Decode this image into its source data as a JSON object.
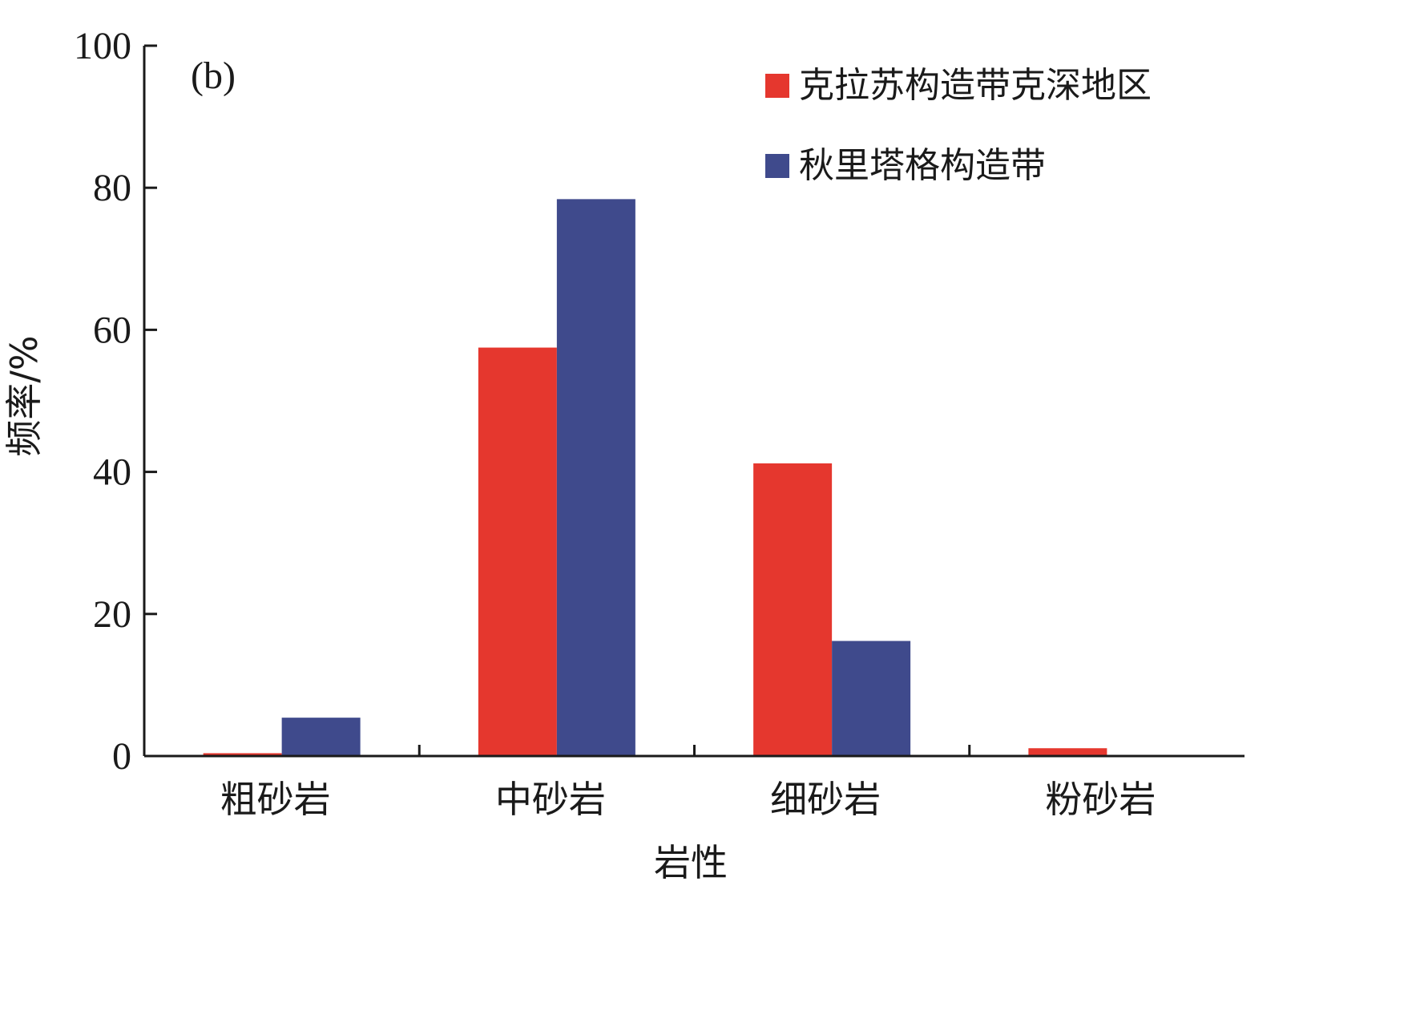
{
  "chart_data": {
    "type": "bar",
    "panel_label": "(b)",
    "xlabel": "岩性",
    "ylabel": "频率/%",
    "ylim": [
      0,
      100
    ],
    "yticks": [
      0,
      20,
      40,
      60,
      80,
      100
    ],
    "categories": [
      "粗砂岩",
      "中砂岩",
      "细砂岩",
      "粉砂岩"
    ],
    "series": [
      {
        "name": "克拉苏构造带克深地区",
        "color": "#e5372e",
        "values": [
          0.4,
          57.5,
          41.2,
          1.1
        ]
      },
      {
        "name": "秋里塔格构造带",
        "color": "#3f4a8c",
        "values": [
          5.4,
          78.4,
          16.2,
          0
        ]
      }
    ],
    "legend_position": "top-right",
    "grid": false
  }
}
